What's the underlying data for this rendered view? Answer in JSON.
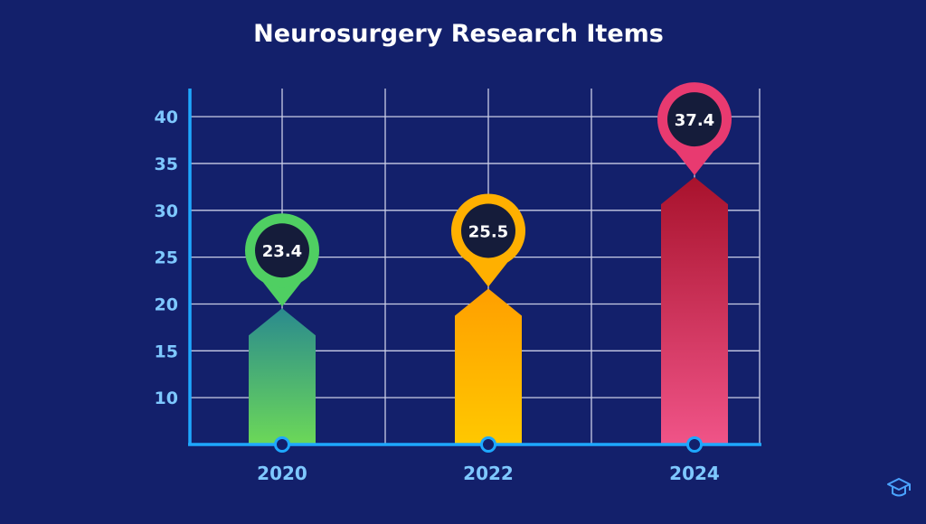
{
  "chart_data": {
    "type": "bar",
    "title": "Neurosurgery Research Items",
    "categories": [
      "2020",
      "2022",
      "2024"
    ],
    "values": [
      23.4,
      25.5,
      37.4
    ],
    "value_labels": [
      "23.4",
      "25.5",
      "37.4"
    ],
    "y_ticks": [
      "10",
      "15",
      "20",
      "25",
      "30",
      "35",
      "40"
    ],
    "ylim": [
      5,
      43
    ],
    "grid": true,
    "xlabel": "",
    "ylabel": "",
    "bar_gradients": [
      {
        "top": "#2a8a8e",
        "bottom": "#6cd858",
        "ring": "#4fcf62"
      },
      {
        "top": "#ff9f00",
        "bottom": "#ffc800",
        "ring": "#ffb000"
      },
      {
        "top": "#a8122c",
        "bottom": "#f05488",
        "ring": "#e83a70"
      }
    ]
  },
  "colors": {
    "background": "#13206b",
    "axis": "#1ea8ff",
    "grid": "#c9cde6",
    "tick_label": "#7ec8ff",
    "title": "#ffffff",
    "value_text": "#ffffff",
    "marker_fill": "#13206b"
  },
  "icons": {
    "corner": "graduation-cap-icon"
  }
}
